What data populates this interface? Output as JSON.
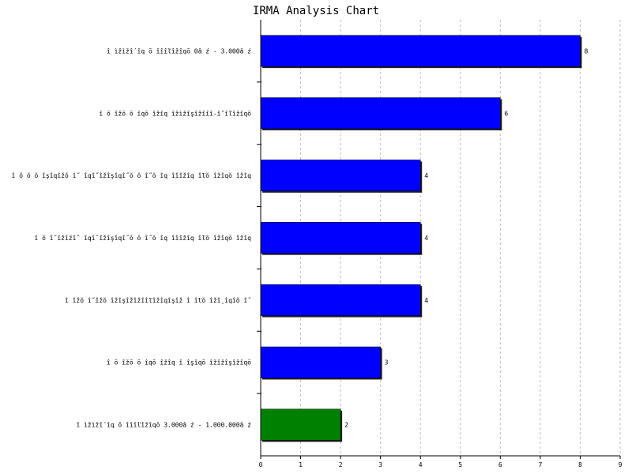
{
  "chart_data": {
    "type": "bar",
    "orientation": "horizontal",
    "title": "IRMA Analysis Chart",
    "xlabel": "",
    "ylabel": "",
    "xlim": [
      0,
      9
    ],
    "x_ticks": [
      0,
      1,
      2,
      3,
      4,
      5,
      6,
      7,
      8,
      9
    ],
    "grid": "vertical-dashed",
    "categories": [
      "î ìžìžî´îq ŏ îîîľîžîqŏ  0â ź - 3.000â ź",
      "î ŏ îžŏ ŏ îqŏ îžîq îžìžîşîžîîî-î˝îľîžîqŏ",
      "î ŏ ŏ ŏ îşîqîžŏ î˝ îqî˝îžîşîqî˝ŏ ŏ î˝ŏ îq îîîžîq îľŏ îžîqŏ îžîq",
      "î ŏ î˝îžîźî˝ îqî˝îžîşîqî˝ŏ ŏ î˝ŏ îq îîîžîq îľŏ îžîqŏ îžîq",
      "î îžŏ î˝îžŏ îžîşîžîžîîľîžîqîşîž î îľŏ îžî¸îqîŏ î˝",
      "î ŏ îžŏ ŏ îqŏ îžîq î  îşîqŏ îžîžîşîžîqŏ",
      "î ìžìžî´îq ŏ îîîľîžîqŏ  3.000â ź - 1.000.000â ź"
    ],
    "values": [
      8,
      6,
      4,
      4,
      4,
      3,
      2
    ],
    "colors": [
      "#0000ff",
      "#0000ff",
      "#0000ff",
      "#0000ff",
      "#0000ff",
      "#0000ff",
      "#008000"
    ]
  }
}
